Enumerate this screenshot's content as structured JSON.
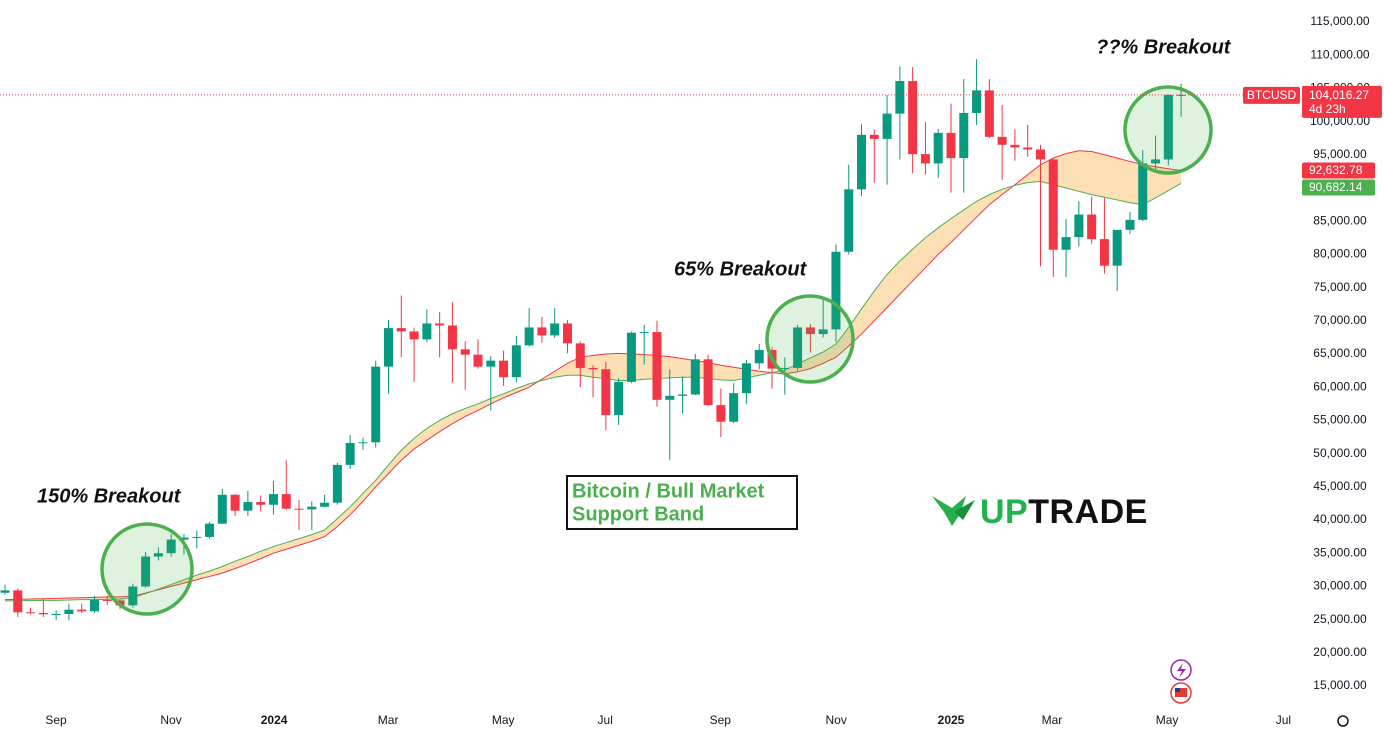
{
  "chart_data": {
    "type": "candlestick",
    "up_color": "#089981",
    "down_color": "#f23645",
    "series": [
      {
        "name": "BTCUSD",
        "open": [
          29050,
          29400,
          26100,
          26000,
          25800,
          25850,
          26500,
          26250,
          27950,
          27900,
          27150,
          29990,
          34500,
          35000,
          37050,
          37350,
          37450,
          39450,
          43800,
          41400,
          42700,
          42300,
          43900,
          41700,
          41600,
          42000,
          42600,
          48300,
          51600,
          51700,
          63100,
          68900,
          68400,
          67200,
          69600,
          69300,
          65700,
          64900,
          63100,
          64000,
          61500,
          66300,
          69000,
          67800,
          69600,
          66600,
          62900,
          62700,
          55800,
          60800,
          68200,
          68300,
          58100,
          58700,
          58900,
          64200,
          57300,
          54800,
          59100,
          63600,
          65600,
          62800,
          62900,
          69000,
          68000,
          68700,
          80400,
          89800,
          98000,
          97400,
          101200,
          106100,
          95100,
          93700,
          98300,
          94500,
          101300,
          104700,
          97700,
          96500,
          96100,
          95800,
          94300,
          80700,
          82600,
          86000,
          82300,
          78300,
          83700,
          85200,
          93700,
          94300,
          104000
        ],
        "high": [
          30250,
          29700,
          26800,
          28100,
          26400,
          27400,
          27400,
          28600,
          28600,
          28000,
          30400,
          35200,
          35900,
          37900,
          37900,
          38400,
          39700,
          44700,
          43900,
          44400,
          43700,
          45900,
          49000,
          43000,
          42800,
          43800,
          48600,
          52800,
          52400,
          64000,
          70100,
          73800,
          68900,
          71700,
          71300,
          72800,
          66900,
          67200,
          64700,
          65500,
          67700,
          71900,
          70600,
          71900,
          70100,
          66900,
          63300,
          63800,
          61400,
          68400,
          69400,
          70000,
          62700,
          61600,
          65000,
          64900,
          59800,
          60600,
          64100,
          66500,
          66000,
          64500,
          69400,
          69500,
          73600,
          81500,
          93500,
          99600,
          98800,
          104000,
          108300,
          108200,
          99900,
          98900,
          102700,
          106400,
          109400,
          106400,
          102500,
          98800,
          99500,
          96500,
          94400,
          85300,
          88000,
          88700,
          88500,
          83500,
          86400,
          95700,
          97900,
          104100,
          105700
        ],
        "low": [
          28750,
          25400,
          25800,
          25400,
          24900,
          24900,
          26000,
          26000,
          27200,
          26550,
          26800,
          29800,
          33900,
          34500,
          34800,
          35700,
          37200,
          39400,
          40600,
          40600,
          41300,
          40800,
          41500,
          38500,
          38500,
          41900,
          42300,
          47700,
          50600,
          50900,
          59000,
          64500,
          60800,
          66800,
          64500,
          60700,
          59600,
          62800,
          56500,
          60200,
          60700,
          66100,
          66700,
          67400,
          65100,
          60000,
          58500,
          53500,
          54300,
          60600,
          63400,
          57100,
          49000,
          56100,
          58800,
          57200,
          52500,
          54600,
          57500,
          62700,
          59800,
          58900,
          62500,
          65200,
          67500,
          66800,
          80000,
          88800,
          90800,
          90500,
          94300,
          92200,
          92000,
          91500,
          89300,
          89300,
          99500,
          97500,
          91200,
          94100,
          94700,
          78200,
          76600,
          76600,
          81200,
          81600,
          77100,
          74500,
          83100,
          85000,
          92800,
          93400,
          100700
        ],
        "close": [
          29400,
          26100,
          26000,
          25800,
          25850,
          26500,
          26250,
          27950,
          27900,
          27150,
          29990,
          34500,
          35000,
          37050,
          37350,
          37450,
          39450,
          43800,
          41400,
          42700,
          42300,
          43900,
          41700,
          41600,
          42000,
          42600,
          48300,
          51600,
          51700,
          63100,
          68900,
          68400,
          67200,
          69600,
          69300,
          65700,
          64900,
          63100,
          64000,
          61500,
          66300,
          69000,
          67800,
          69600,
          66600,
          62900,
          62700,
          55800,
          60800,
          68200,
          68300,
          58100,
          58700,
          58900,
          64200,
          57300,
          54800,
          59100,
          63600,
          65600,
          62800,
          62900,
          69000,
          68000,
          68700,
          80400,
          89800,
          98000,
          97400,
          101200,
          106100,
          95100,
          93700,
          98300,
          94500,
          101300,
          104700,
          97700,
          96500,
          96100,
          95800,
          94300,
          80700,
          82600,
          86000,
          82300,
          78300,
          83700,
          85200,
          93700,
          94300,
          104000,
          104016.27
        ]
      }
    ],
    "bands": [
      {
        "color": "#f23645",
        "value_label": "92,632.78",
        "values": [
          28000,
          28050,
          28100,
          28150,
          28200,
          28250,
          28300,
          28350,
          28400,
          28450,
          28500,
          29000,
          29500,
          30000,
          30500,
          31000,
          31500,
          32000,
          32700,
          33400,
          34200,
          35000,
          35600,
          36200,
          36800,
          37500,
          39000,
          40800,
          42800,
          45000,
          47000,
          49000,
          50700,
          52000,
          53300,
          54500,
          55600,
          56500,
          57500,
          58400,
          59200,
          60000,
          61200,
          62400,
          63600,
          64500,
          64800,
          65000,
          65100,
          65000,
          64900,
          64800,
          64600,
          64300,
          64000,
          63700,
          63300,
          63000,
          62700,
          62400,
          62200,
          62000,
          62300,
          62800,
          63600,
          64500,
          66200,
          68000,
          70000,
          72000,
          74000,
          76000,
          78000,
          80000,
          81800,
          83700,
          85600,
          87500,
          89000,
          90500,
          92000,
          93500,
          94500,
          95200,
          95600,
          95500,
          95000,
          94500,
          94000,
          93500,
          93200,
          92900,
          92632.78
        ]
      },
      {
        "color": "#4caf50",
        "value_label": "90,682.14",
        "values": [
          27800,
          27850,
          27850,
          27900,
          27900,
          27950,
          28000,
          28000,
          28050,
          28100,
          28300,
          28900,
          29600,
          30300,
          31000,
          31700,
          32300,
          33000,
          33800,
          34500,
          35300,
          36000,
          36600,
          37200,
          37800,
          38500,
          40200,
          42000,
          44000,
          46000,
          48300,
          50500,
          52300,
          53800,
          55000,
          56000,
          56800,
          57500,
          58300,
          59000,
          59800,
          60500,
          61000,
          61500,
          61800,
          61800,
          61500,
          61300,
          61000,
          61000,
          61200,
          61300,
          61400,
          61500,
          61500,
          61300,
          61100,
          61000,
          61400,
          61800,
          62200,
          62600,
          63500,
          64400,
          65300,
          66500,
          69000,
          71800,
          74500,
          77000,
          79000,
          80800,
          82500,
          84000,
          85400,
          86700,
          88000,
          89000,
          89800,
          90400,
          90800,
          91000,
          90500,
          90000,
          89500,
          89000,
          88600,
          88200,
          87800,
          87500,
          88500,
          89600,
          90682.14
        ]
      }
    ],
    "band_fill": "#fcd9a8",
    "last_price": {
      "value": 104016.27,
      "label": "104,016.27"
    },
    "countdown": "4d 23h",
    "xlim": [
      -0.39,
      101.3
    ],
    "xticks": [
      {
        "value": 3.99,
        "label": "Sep"
      },
      {
        "value": 12.99,
        "label": "Nov"
      },
      {
        "value": 21.05,
        "label": "2024"
      },
      {
        "value": 29.97,
        "label": "Mar"
      },
      {
        "value": 38.97,
        "label": "May"
      },
      {
        "value": 46.95,
        "label": "Jul"
      },
      {
        "value": 55.95,
        "label": "Sep"
      },
      {
        "value": 65.02,
        "label": "Nov"
      },
      {
        "value": 74.0,
        "label": "2025"
      },
      {
        "value": 81.9,
        "label": "Mar"
      },
      {
        "value": 90.9,
        "label": "May"
      },
      {
        "value": 100.0,
        "label": "Jul"
      }
    ],
    "ylim": [
      12140,
      118310
    ],
    "yticks": [
      {
        "value": 15000,
        "label": "15,000.00"
      },
      {
        "value": 20000,
        "label": "20,000.00"
      },
      {
        "value": 25000,
        "label": "25,000.00"
      },
      {
        "value": 30000,
        "label": "30,000.00"
      },
      {
        "value": 35000,
        "label": "35,000.00"
      },
      {
        "value": 40000,
        "label": "40,000.00"
      },
      {
        "value": 45000,
        "label": "45,000.00"
      },
      {
        "value": 50000,
        "label": "50,000.00"
      },
      {
        "value": 55000,
        "label": "55,000.00"
      },
      {
        "value": 60000,
        "label": "60,000.00"
      },
      {
        "value": 65000,
        "label": "65,000.00"
      },
      {
        "value": 70000,
        "label": "70,000.00"
      },
      {
        "value": 75000,
        "label": "75,000.00"
      },
      {
        "value": 80000,
        "label": "80,000.00"
      },
      {
        "value": 85000,
        "label": "85,000.00"
      },
      {
        "value": 90000,
        "label": "90,000.00"
      },
      {
        "value": 95000,
        "label": "95,000.00"
      },
      {
        "value": 100000,
        "label": "100,000.00"
      },
      {
        "value": 105000,
        "label": "105,000.00"
      },
      {
        "value": 110000,
        "label": "110,000.00"
      },
      {
        "value": 115000,
        "label": "115,000.00"
      }
    ],
    "annotations": [
      "150% Breakout",
      "65% Breakout",
      "??% Breakout"
    ],
    "band_note": [
      "Bitcoin / Bull Market",
      "Support Band"
    ],
    "logo": [
      "UP",
      "TRADE"
    ]
  }
}
